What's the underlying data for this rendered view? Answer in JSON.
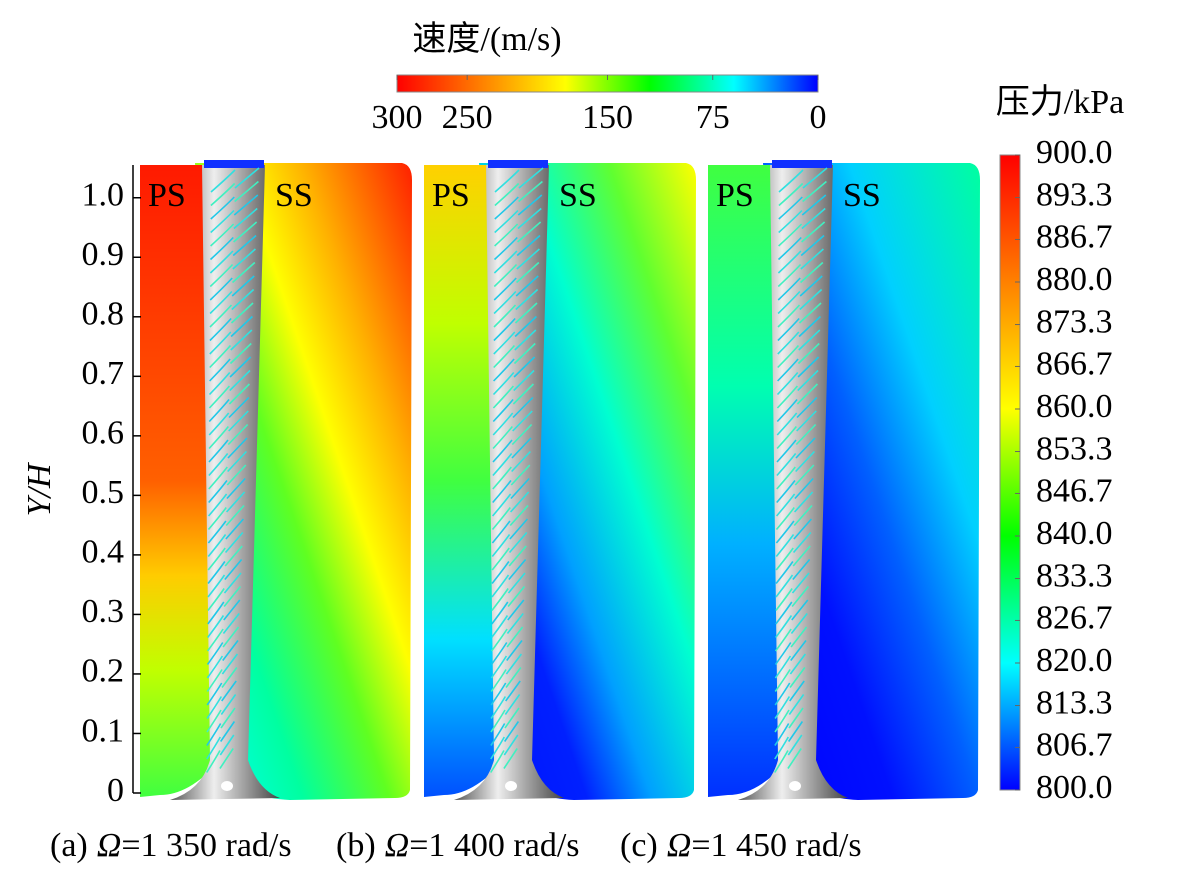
{
  "velocity_colorbar": {
    "title": "速度/(m/s)",
    "lim": [
      300,
      0
    ],
    "ticks": [
      300,
      250,
      150,
      75,
      0
    ],
    "colors": [
      "#ff0000",
      "#ff8000",
      "#ffff00",
      "#00ff00",
      "#00ffff",
      "#0000ff"
    ]
  },
  "pressure_colorbar": {
    "title": "压力/kPa",
    "lim": [
      800,
      900
    ],
    "ticks": [
      {
        "value": 900,
        "label": "900.0"
      },
      {
        "value": 893.3,
        "label": "893.3"
      },
      {
        "value": 886.7,
        "label": "886.7"
      },
      {
        "value": 880,
        "label": "880.0"
      },
      {
        "value": 873.3,
        "label": "873.3"
      },
      {
        "value": 866.7,
        "label": "866.7"
      },
      {
        "value": 860,
        "label": "860.0"
      },
      {
        "value": 853.3,
        "label": "853.3"
      },
      {
        "value": 846.7,
        "label": "846.7"
      },
      {
        "value": 840,
        "label": "840.0"
      },
      {
        "value": 833.3,
        "label": "833.3"
      },
      {
        "value": 826.7,
        "label": "826.7"
      },
      {
        "value": 820,
        "label": "820.0"
      },
      {
        "value": 813.3,
        "label": "813.3"
      },
      {
        "value": 806.7,
        "label": "806.7"
      },
      {
        "value": 800,
        "label": "800.0"
      }
    ],
    "colors": [
      "#ff0000",
      "#ff8000",
      "#ffff00",
      "#00ff00",
      "#00ffff",
      "#0000ff"
    ]
  },
  "y_axis": {
    "label": "Y/H",
    "ylim": [
      0,
      1.055
    ],
    "yticks": [
      0,
      0.1,
      0.2,
      0.3,
      0.4,
      0.5,
      0.6,
      0.7,
      0.8,
      0.9,
      {
        "value": 1,
        "label": "1.0"
      }
    ]
  },
  "panels": [
    {
      "ps": "PS",
      "ss": "SS",
      "caption": {
        "label": "(a)",
        "symbol": "Ω",
        "value": "=1 350 rad/s"
      }
    },
    {
      "ps": "PS",
      "ss": "SS",
      "caption": {
        "label": "(b)",
        "symbol": "Ω",
        "value": "=1 400 rad/s"
      }
    },
    {
      "ps": "PS",
      "ss": "SS",
      "caption": {
        "label": "(c)",
        "symbol": "Ω",
        "value": "=1 450 rad/s"
      }
    }
  ]
}
